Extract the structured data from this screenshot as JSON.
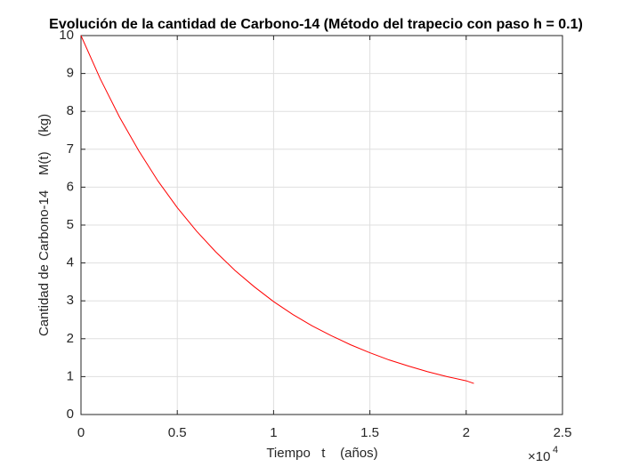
{
  "chart_data": {
    "type": "line",
    "title": "Evolución de la cantidad de Carbono-14 (Método del trapecio con paso h = 0.1)",
    "x_label": "Tiempo   t    (años)",
    "y_label": "Cantidad de Carbono-14    M(t)    (kg)",
    "x_multiplier": "×10",
    "x_multiplier_exponent": "4",
    "x": [
      0,
      1000,
      2000,
      3000,
      4000,
      5000,
      6000,
      7000,
      8000,
      9000,
      10000,
      11000,
      12000,
      13000,
      14000,
      15000,
      16000,
      17000,
      18000,
      19000,
      20000,
      20400
    ],
    "series": [
      {
        "color": "#ff0000",
        "values": [
          10,
          8.86,
          7.85,
          6.96,
          6.16,
          5.46,
          4.84,
          4.29,
          3.8,
          3.37,
          2.98,
          2.64,
          2.34,
          2.08,
          1.84,
          1.63,
          1.44,
          1.28,
          1.13,
          1.0,
          0.89,
          0.82
        ]
      }
    ],
    "xlim": [
      0,
      25000
    ],
    "xticks": [
      0,
      {
        "value": 5000,
        "label": "0.5"
      },
      {
        "value": 10000,
        "label": "1"
      },
      {
        "value": 15000,
        "label": "1.5"
      },
      {
        "value": 20000,
        "label": "2"
      },
      {
        "value": 25000,
        "label": "2.5"
      }
    ],
    "ylim": [
      0,
      10
    ],
    "yticks": [
      0,
      1,
      2,
      3,
      4,
      5,
      6,
      7,
      8,
      9,
      10
    ],
    "grid": true
  }
}
